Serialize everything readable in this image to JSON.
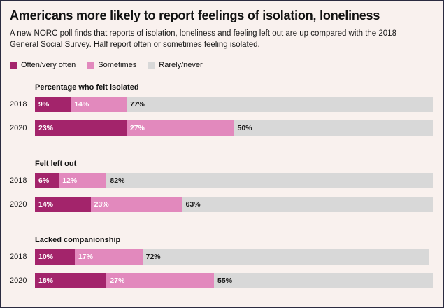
{
  "theme": {
    "background": "#f9f1ee",
    "border": "#2b2b40",
    "text": "#1a1a1a"
  },
  "chart_data": {
    "type": "bar",
    "orientation": "horizontal",
    "stacked": true,
    "unit": "%",
    "xlim": [
      0,
      100
    ],
    "title": "Americans more likely to report feelings of isolation, loneliness",
    "subtitle": "A new NORC poll finds that reports of isolation, loneliness and feeling left out are up compared with the 2018 General Social Survey. Half report often or sometimes feeling isolated.",
    "legend_position": "top-left",
    "legend": [
      {
        "label": "Often/very often",
        "color": "#a3246b",
        "text_color": "#ffffff"
      },
      {
        "label": "Sometimes",
        "color": "#e289bd",
        "text_color": "#ffffff"
      },
      {
        "label": "Rarely/never",
        "color": "#d8d8d8",
        "text_color": "#1a1a1a"
      }
    ],
    "groups": [
      {
        "title": "Percentage who felt isolated",
        "rows": [
          {
            "year": "2018",
            "values": [
              9,
              14,
              77
            ]
          },
          {
            "year": "2020",
            "values": [
              23,
              27,
              50
            ]
          }
        ]
      },
      {
        "title": "Felt left out",
        "rows": [
          {
            "year": "2018",
            "values": [
              6,
              12,
              82
            ]
          },
          {
            "year": "2020",
            "values": [
              14,
              23,
              63
            ]
          }
        ]
      },
      {
        "title": "Lacked companionship",
        "rows": [
          {
            "year": "2018",
            "values": [
              10,
              17,
              72
            ]
          },
          {
            "year": "2020",
            "values": [
              18,
              27,
              55
            ]
          }
        ]
      }
    ]
  }
}
